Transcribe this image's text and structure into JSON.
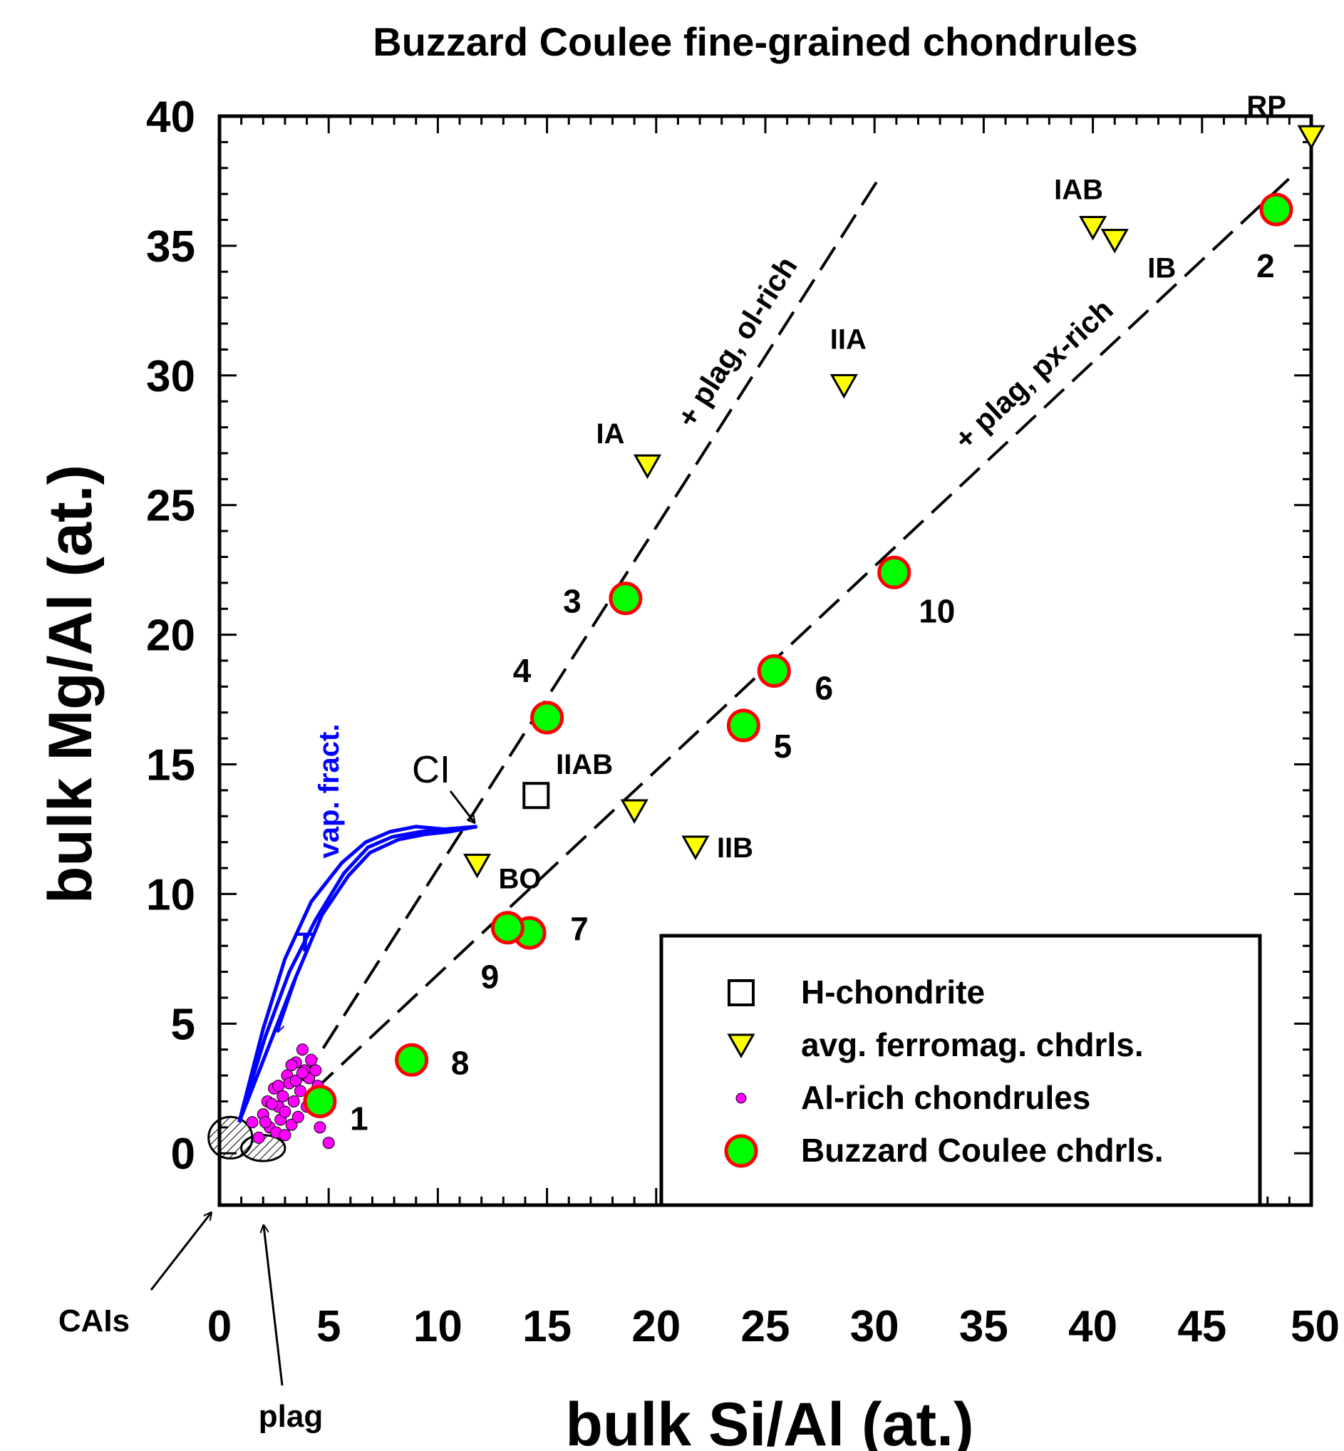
{
  "chart_data": {
    "type": "scatter",
    "title": "Buzzard Coulee fine-grained chondrules",
    "xlabel": "bulk Si/Al (at.)",
    "ylabel": "bulk Mg/Al (at.)",
    "xlim": [
      0,
      50
    ],
    "ylim": [
      -2,
      40
    ],
    "xticks": [
      0,
      5,
      10,
      15,
      20,
      25,
      30,
      35,
      40,
      45,
      50
    ],
    "yticks": [
      0,
      5,
      10,
      15,
      20,
      25,
      30,
      35,
      40
    ],
    "xtick_labels": [
      "0",
      "5",
      "10",
      "15",
      "20",
      "25",
      "30",
      "35",
      "40",
      "45",
      "50"
    ],
    "ytick_labels": [
      "0",
      "5",
      "10",
      "15",
      "20",
      "25",
      "30",
      "35",
      "40"
    ],
    "legend_position": "lower-right",
    "legend": [
      {
        "label": "H-chondrite",
        "marker": "open-square"
      },
      {
        "label": "avg. ferromag. chdrls.",
        "marker": "down-triangle"
      },
      {
        "label": "Al-rich chondrules",
        "marker": "small-dot"
      },
      {
        "label": "Buzzard Coulee chdrls.",
        "marker": "circle"
      }
    ],
    "series": [
      {
        "name": "H-chondrite",
        "points": [
          {
            "x": 14.5,
            "y": 13.8
          }
        ]
      },
      {
        "name": "avg. ferromag. chdrls.",
        "points": [
          {
            "x": 19.6,
            "y": 26.5,
            "label": "IA"
          },
          {
            "x": 28.6,
            "y": 29.6,
            "label": "IIA"
          },
          {
            "x": 40.0,
            "y": 35.7,
            "label": "IAB"
          },
          {
            "x": 41.0,
            "y": 35.2,
            "label": "IB"
          },
          {
            "x": 50.0,
            "y": 39.2,
            "label": "RP"
          },
          {
            "x": 19.0,
            "y": 13.2,
            "label": "IIAB"
          },
          {
            "x": 21.8,
            "y": 11.8,
            "label": "IIB"
          },
          {
            "x": 11.8,
            "y": 11.1,
            "label": "BO"
          }
        ]
      },
      {
        "name": "Al-rich chondrules",
        "points": [
          {
            "x": 1.5,
            "y": 1.2
          },
          {
            "x": 1.8,
            "y": 0.6
          },
          {
            "x": 2.0,
            "y": 1.5
          },
          {
            "x": 2.2,
            "y": 2.0
          },
          {
            "x": 2.3,
            "y": 1.0
          },
          {
            "x": 2.5,
            "y": 2.5
          },
          {
            "x": 2.6,
            "y": 0.8
          },
          {
            "x": 2.7,
            "y": 1.8
          },
          {
            "x": 2.8,
            "y": 1.3
          },
          {
            "x": 2.9,
            "y": 2.2
          },
          {
            "x": 3.0,
            "y": 1.6
          },
          {
            "x": 3.1,
            "y": 3.0
          },
          {
            "x": 3.2,
            "y": 2.7
          },
          {
            "x": 3.3,
            "y": 1.1
          },
          {
            "x": 3.4,
            "y": 2.0
          },
          {
            "x": 3.5,
            "y": 3.5
          },
          {
            "x": 3.6,
            "y": 1.4
          },
          {
            "x": 3.7,
            "y": 2.4
          },
          {
            "x": 3.8,
            "y": 4.0
          },
          {
            "x": 3.9,
            "y": 3.2
          },
          {
            "x": 4.0,
            "y": 1.8
          },
          {
            "x": 4.1,
            "y": 2.9
          },
          {
            "x": 4.2,
            "y": 3.6
          },
          {
            "x": 4.3,
            "y": 2.1
          },
          {
            "x": 4.5,
            "y": 2.6
          },
          {
            "x": 4.6,
            "y": 1.0
          },
          {
            "x": 3.0,
            "y": 0.7
          },
          {
            "x": 2.4,
            "y": 1.9
          },
          {
            "x": 3.5,
            "y": 2.8
          },
          {
            "x": 5.0,
            "y": 0.4
          },
          {
            "x": 3.8,
            "y": 3.1
          },
          {
            "x": 2.1,
            "y": 1.2
          },
          {
            "x": 3.3,
            "y": 3.4
          },
          {
            "x": 4.4,
            "y": 3.2
          },
          {
            "x": 2.7,
            "y": 2.6
          }
        ]
      },
      {
        "name": "Buzzard Coulee chdrls.",
        "points": [
          {
            "x": 4.6,
            "y": 2.0,
            "label": "1"
          },
          {
            "x": 48.4,
            "y": 36.4,
            "label": "2"
          },
          {
            "x": 18.6,
            "y": 21.4,
            "label": "3"
          },
          {
            "x": 15.0,
            "y": 16.8,
            "label": "4"
          },
          {
            "x": 24.0,
            "y": 16.5,
            "label": "5"
          },
          {
            "x": 25.4,
            "y": 18.6,
            "label": "6"
          },
          {
            "x": 14.2,
            "y": 8.5,
            "label": "7"
          },
          {
            "x": 8.8,
            "y": 3.6,
            "label": "8"
          },
          {
            "x": 13.2,
            "y": 8.7,
            "label": "9"
          },
          {
            "x": 30.9,
            "y": 22.4,
            "label": "10"
          }
        ]
      }
    ],
    "lines": [
      {
        "label": "+ plag, ol-rich",
        "from": [
          3.8,
          2.8
        ],
        "to": [
          30.2,
          37.6
        ]
      },
      {
        "label": "+ plag, px-rich",
        "from": [
          4.3,
          2.4
        ],
        "to": [
          49.0,
          37.6
        ]
      }
    ],
    "vapor_fractionation_curves": {
      "label": "vap. fract.",
      "arrow_label": "T",
      "curves": [
        [
          [
            0.9,
            1.2
          ],
          [
            2.2,
            4.0
          ],
          [
            3.4,
            6.6
          ],
          [
            4.7,
            9.2
          ],
          [
            5.9,
            10.7
          ],
          [
            6.9,
            11.6
          ],
          [
            8.2,
            12.1
          ],
          [
            9.4,
            12.3
          ],
          [
            10.5,
            12.4
          ],
          [
            11.8,
            12.6
          ]
        ],
        [
          [
            0.9,
            1.2
          ],
          [
            2.1,
            4.5
          ],
          [
            3.2,
            7.0
          ],
          [
            4.4,
            9.0
          ],
          [
            5.7,
            10.8
          ],
          [
            6.8,
            11.8
          ],
          [
            7.9,
            12.2
          ],
          [
            9.2,
            12.4
          ],
          [
            10.4,
            12.5
          ],
          [
            11.8,
            12.6
          ]
        ],
        [
          [
            0.9,
            1.2
          ],
          [
            2.0,
            4.8
          ],
          [
            3.0,
            7.5
          ],
          [
            4.2,
            9.7
          ],
          [
            5.6,
            11.2
          ],
          [
            6.7,
            12.0
          ],
          [
            7.8,
            12.4
          ],
          [
            9.0,
            12.6
          ],
          [
            10.3,
            12.5
          ],
          [
            11.8,
            12.6
          ]
        ]
      ]
    },
    "annotations": [
      {
        "text": "CI",
        "x": 11.8,
        "y": 12.6
      },
      {
        "text": "CAIs",
        "x": 0.3,
        "y": 0.6
      },
      {
        "text": "plag",
        "x": 2.0,
        "y": 0.2
      }
    ],
    "regions": [
      {
        "label": "CAIs",
        "cx": 0.5,
        "cy": 0.6,
        "rx": 1.0,
        "ry": 0.8
      },
      {
        "label": "plag",
        "cx": 2.0,
        "cy": 0.2,
        "rx": 1.0,
        "ry": 0.5
      }
    ],
    "colors": {
      "triangle_fill": "#ffff00",
      "circle_fill": "#00ff00",
      "circle_stroke": "#ff0000",
      "dot_fill": "#ff00ff",
      "curve": "#0000ff",
      "axis": "#000000"
    },
    "grid": false
  }
}
